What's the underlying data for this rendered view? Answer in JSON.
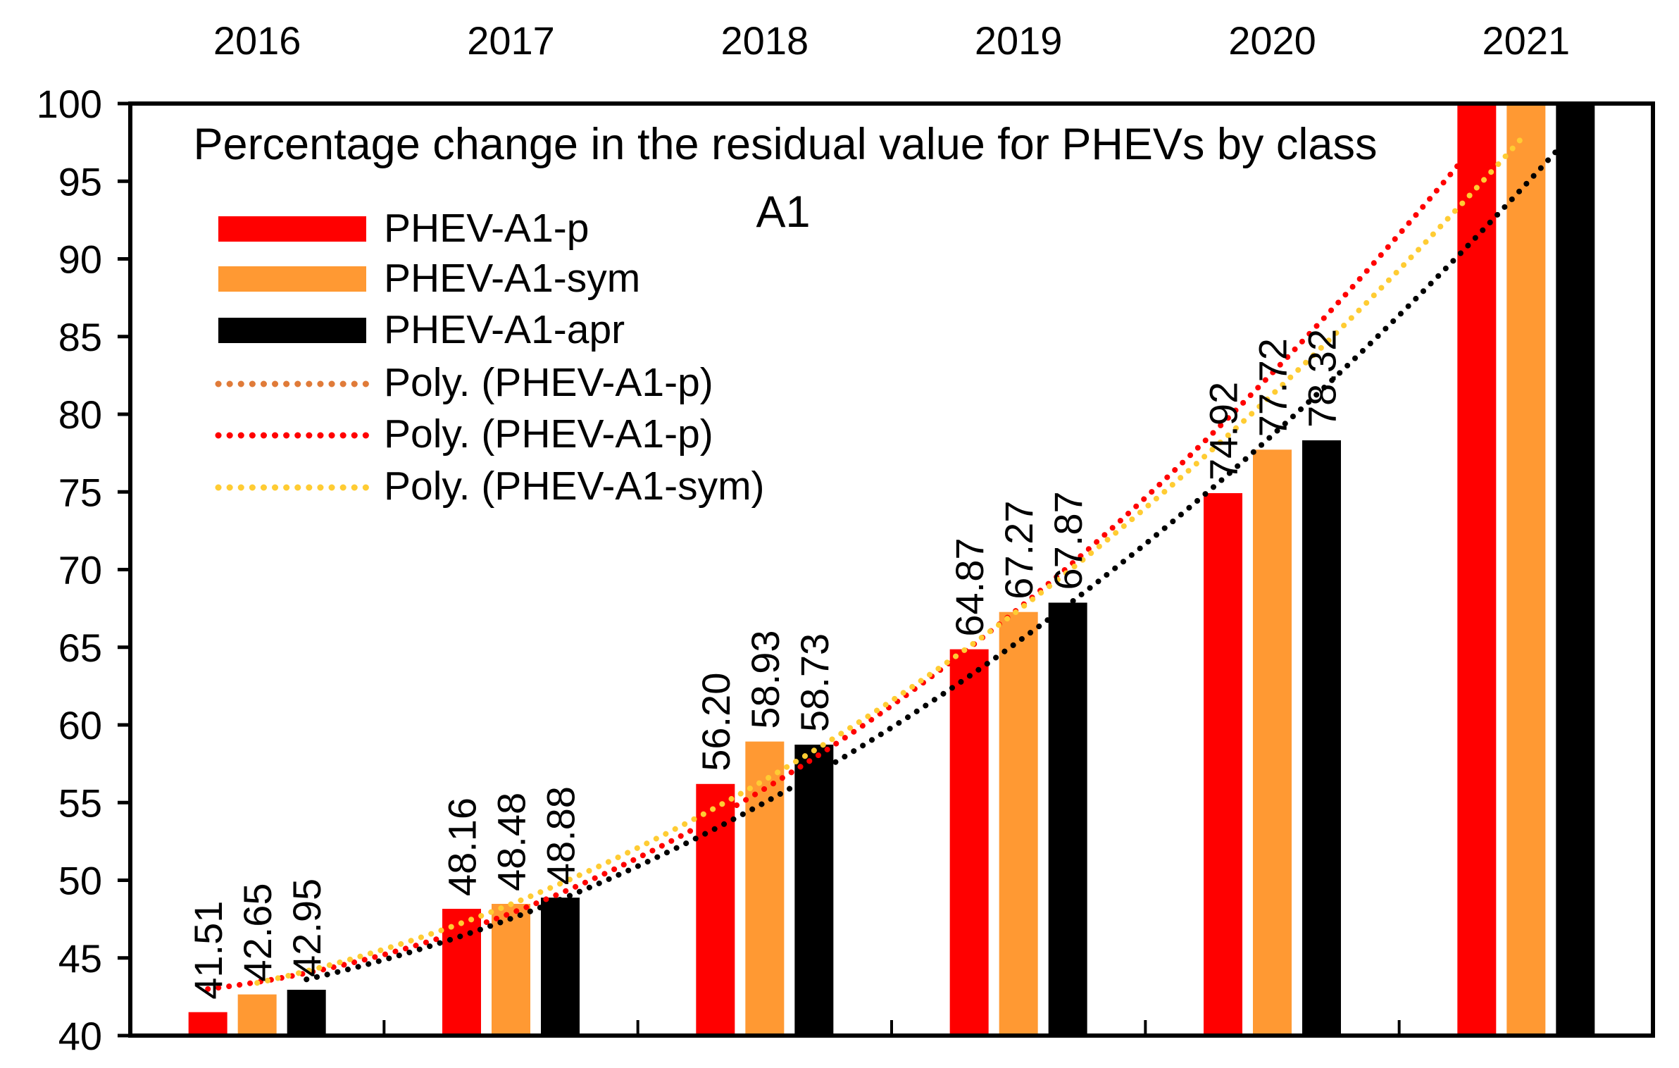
{
  "chart_data": {
    "type": "bar",
    "title": "Percentage change in the residual value for PHEVs by class A1",
    "title_lines": [
      "Percentage change in the residual value for PHEVs by class",
      "A1"
    ],
    "categories": [
      "2016",
      "2017",
      "2018",
      "2019",
      "2020",
      "2021"
    ],
    "ylim": [
      40,
      100
    ],
    "y_ticks": [
      "40",
      "45",
      "50",
      "55",
      "60",
      "65",
      "70",
      "75",
      "80",
      "85",
      "90",
      "95",
      "100"
    ],
    "xaxis_position": "top",
    "grid": false,
    "legend_position": "top-left",
    "series": [
      {
        "name": "PHEV-A1-p",
        "color": "#ff0000",
        "values": [
          41.51,
          48.16,
          56.2,
          64.87,
          74.92,
          100
        ],
        "labels": [
          "41.51",
          "48.16",
          "56.20",
          "64.87",
          "74.92",
          ""
        ]
      },
      {
        "name": "PHEV-A1-sym",
        "color": "#ff9933",
        "values": [
          42.65,
          48.48,
          58.93,
          67.27,
          77.72,
          100
        ],
        "labels": [
          "42.65",
          "48.48",
          "58.93",
          "67.27",
          "77.72",
          ""
        ]
      },
      {
        "name": "PHEV-A1-apr",
        "color": "#000000",
        "values": [
          42.95,
          48.88,
          58.73,
          67.87,
          78.32,
          100
        ],
        "labels": [
          "42.95",
          "48.88",
          "58.73",
          "67.87",
          "78.32",
          ""
        ]
      }
    ],
    "trendlines": [
      {
        "name": "Poly. (PHEV-A1-p)",
        "color": "#e07b39",
        "legend_only": true
      },
      {
        "name": "Poly. (PHEV-A1-p)",
        "color": "#ff0000",
        "fit_series": 0,
        "legend_only": false
      },
      {
        "name": "Poly. (PHEV-A1-sym)",
        "color": "#ffcc33",
        "fit_series": 1,
        "legend_only": false
      }
    ],
    "extra_trendlines": [
      {
        "color": "#000000",
        "fit_series": 2
      }
    ]
  }
}
